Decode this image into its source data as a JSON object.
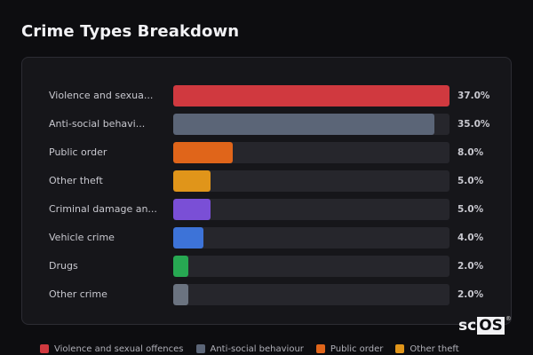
{
  "title": "Crime Types Breakdown",
  "chart_data": {
    "type": "bar",
    "orientation": "horizontal",
    "title": "Crime Types Breakdown",
    "categories": [
      "Violence and sexual offences",
      "Anti-social behaviour",
      "Public order",
      "Other theft",
      "Criminal damage and arson",
      "Vehicle crime",
      "Drugs",
      "Other crime"
    ],
    "display_labels": [
      "Violence and sexua...",
      "Anti-social behavi...",
      "Public order",
      "Other theft",
      "Criminal damage an...",
      "Vehicle crime",
      "Drugs",
      "Other crime"
    ],
    "values": [
      37.0,
      35.0,
      8.0,
      5.0,
      5.0,
      4.0,
      2.0,
      2.0
    ],
    "value_labels": [
      "37.0%",
      "35.0%",
      "8.0%",
      "5.0%",
      "5.0%",
      "4.0%",
      "2.0%",
      "2.0%"
    ],
    "colors": [
      "#d0393f",
      "#5b6577",
      "#e0651a",
      "#e0951a",
      "#7a4fd6",
      "#3d73d8",
      "#27a852",
      "#6b7380"
    ],
    "unit": "%",
    "xlim": [
      0,
      37
    ],
    "grid": false,
    "legend_position": "bottom"
  },
  "rows": [
    {
      "label": "Violence and sexua...",
      "value": "37.0%",
      "pct": 100,
      "color": "#d0393f"
    },
    {
      "label": "Anti-social behavi...",
      "value": "35.0%",
      "pct": 94.6,
      "color": "#5b6577"
    },
    {
      "label": "Public order",
      "value": "8.0%",
      "pct": 21.6,
      "color": "#e0651a"
    },
    {
      "label": "Other theft",
      "value": "5.0%",
      "pct": 13.5,
      "color": "#e0951a"
    },
    {
      "label": "Criminal damage an...",
      "value": "5.0%",
      "pct": 13.5,
      "color": "#7a4fd6"
    },
    {
      "label": "Vehicle crime",
      "value": "4.0%",
      "pct": 10.8,
      "color": "#3d73d8"
    },
    {
      "label": "Drugs",
      "value": "2.0%",
      "pct": 5.4,
      "color": "#27a852"
    },
    {
      "label": "Other crime",
      "value": "2.0%",
      "pct": 5.4,
      "color": "#6b7380"
    }
  ],
  "legend": [
    {
      "label": "Violence and sexual offences",
      "color": "#d0393f"
    },
    {
      "label": "Anti-social behaviour",
      "color": "#5b6577"
    },
    {
      "label": "Public order",
      "color": "#e0651a"
    },
    {
      "label": "Other theft",
      "color": "#e0951a"
    }
  ],
  "logo": {
    "prefix": "sc",
    "boxed": "OS",
    "mark": "®"
  }
}
